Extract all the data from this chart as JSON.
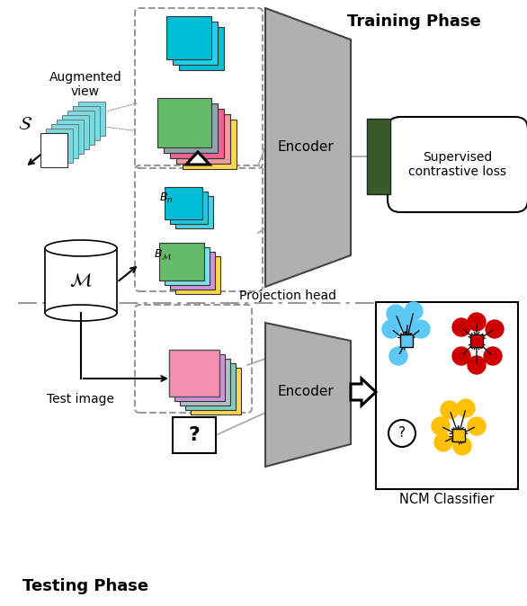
{
  "title_training": "Training Phase",
  "title_testing": "Testing Phase",
  "label_augmented": "Augmented\nview",
  "label_encoder_top": "Encoder",
  "label_encoder_bot": "Encoder",
  "label_proj_head": "Projection head",
  "label_sup_loss": "Supervised\ncontrastive loss",
  "label_ncm": "NCM Classifier",
  "label_S": "$\\mathcal{S}$",
  "label_M": "$\\mathcal{M}$",
  "label_test_image": "Test image",
  "label_Bn": "$B_n$",
  "label_BM": "$B_{\\mathcal{M}}$",
  "bg_color": "#ffffff",
  "encoder_color": "#aaaaaa",
  "proj_head_color": "#3a5a28",
  "blue_dot": "#5bc8f5",
  "red_dot": "#cc0000",
  "yellow_dot": "#ffc107",
  "figw": 5.86,
  "figh": 6.74,
  "dpi": 100
}
